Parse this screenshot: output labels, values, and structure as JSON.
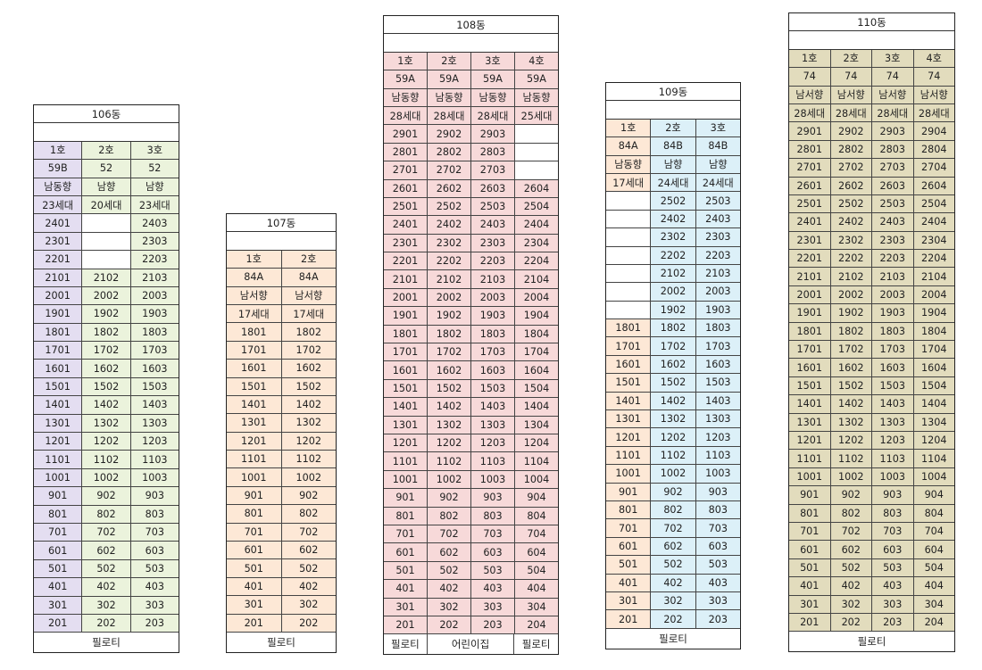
{
  "buildings": [
    {
      "name": "106동",
      "units": [
        "1호",
        "2호",
        "3호"
      ],
      "types": [
        "59B",
        "52",
        "52"
      ],
      "dirs": [
        "남동향",
        "남향",
        "남향"
      ],
      "counts": [
        "23세대",
        "20세대",
        "23세대"
      ],
      "colors": [
        "#e4def1",
        "#ebf3dc",
        "#ebf3dc"
      ],
      "floors": [
        [
          "2401",
          "",
          "2403"
        ],
        [
          "2301",
          "",
          "2303"
        ],
        [
          "2201",
          "",
          "2203"
        ],
        [
          "2101",
          "2102",
          "2103"
        ],
        [
          "2001",
          "2002",
          "2003"
        ],
        [
          "1901",
          "1902",
          "1903"
        ],
        [
          "1801",
          "1802",
          "1803"
        ],
        [
          "1701",
          "1702",
          "1703"
        ],
        [
          "1601",
          "1602",
          "1603"
        ],
        [
          "1501",
          "1502",
          "1503"
        ],
        [
          "1401",
          "1402",
          "1403"
        ],
        [
          "1301",
          "1302",
          "1303"
        ],
        [
          "1201",
          "1202",
          "1203"
        ],
        [
          "1101",
          "1102",
          "1103"
        ],
        [
          "1001",
          "1002",
          "1003"
        ],
        [
          "901",
          "902",
          "903"
        ],
        [
          "801",
          "802",
          "803"
        ],
        [
          "701",
          "702",
          "703"
        ],
        [
          "601",
          "602",
          "603"
        ],
        [
          "501",
          "502",
          "503"
        ],
        [
          "401",
          "402",
          "403"
        ],
        [
          "301",
          "302",
          "303"
        ],
        [
          "201",
          "202",
          "203"
        ]
      ],
      "footer": [
        {
          "label": "필로티",
          "span": 3
        }
      ]
    },
    {
      "name": "107동",
      "units": [
        "1호",
        "2호"
      ],
      "types": [
        "84A",
        "84A"
      ],
      "dirs": [
        "남서향",
        "남서향"
      ],
      "counts": [
        "17세대",
        "17세대"
      ],
      "colors": [
        "#fde8d6",
        "#fde8d6"
      ],
      "floors": [
        [
          "1801",
          "1802"
        ],
        [
          "1701",
          "1702"
        ],
        [
          "1601",
          "1602"
        ],
        [
          "1501",
          "1502"
        ],
        [
          "1401",
          "1402"
        ],
        [
          "1301",
          "1302"
        ],
        [
          "1201",
          "1202"
        ],
        [
          "1101",
          "1102"
        ],
        [
          "1001",
          "1002"
        ],
        [
          "901",
          "902"
        ],
        [
          "801",
          "802"
        ],
        [
          "701",
          "702"
        ],
        [
          "601",
          "602"
        ],
        [
          "501",
          "502"
        ],
        [
          "401",
          "402"
        ],
        [
          "301",
          "302"
        ],
        [
          "201",
          "202"
        ]
      ],
      "footer": [
        {
          "label": "필로티",
          "span": 2
        }
      ]
    },
    {
      "name": "108동",
      "units": [
        "1호",
        "2호",
        "3호",
        "4호"
      ],
      "types": [
        "59A",
        "59A",
        "59A",
        "59A"
      ],
      "dirs": [
        "남동향",
        "남동향",
        "남동향",
        "남동향"
      ],
      "counts": [
        "28세대",
        "28세대",
        "28세대",
        "25세대"
      ],
      "colors": [
        "#f7d9d9",
        "#f7d9d9",
        "#f7d9d9",
        "#f7d9d9"
      ],
      "floors": [
        [
          "2901",
          "2902",
          "2903",
          ""
        ],
        [
          "2801",
          "2802",
          "2803",
          ""
        ],
        [
          "2701",
          "2702",
          "2703",
          ""
        ],
        [
          "2601",
          "2602",
          "2603",
          "2604"
        ],
        [
          "2501",
          "2502",
          "2503",
          "2504"
        ],
        [
          "2401",
          "2402",
          "2403",
          "2404"
        ],
        [
          "2301",
          "2302",
          "2303",
          "2304"
        ],
        [
          "2201",
          "2202",
          "2203",
          "2204"
        ],
        [
          "2101",
          "2102",
          "2103",
          "2104"
        ],
        [
          "2001",
          "2002",
          "2003",
          "2004"
        ],
        [
          "1901",
          "1902",
          "1903",
          "1904"
        ],
        [
          "1801",
          "1802",
          "1803",
          "1804"
        ],
        [
          "1701",
          "1702",
          "1703",
          "1704"
        ],
        [
          "1601",
          "1602",
          "1603",
          "1604"
        ],
        [
          "1501",
          "1502",
          "1503",
          "1504"
        ],
        [
          "1401",
          "1402",
          "1403",
          "1404"
        ],
        [
          "1301",
          "1302",
          "1303",
          "1304"
        ],
        [
          "1201",
          "1202",
          "1203",
          "1204"
        ],
        [
          "1101",
          "1102",
          "1103",
          "1104"
        ],
        [
          "1001",
          "1002",
          "1003",
          "1004"
        ],
        [
          "901",
          "902",
          "903",
          "904"
        ],
        [
          "801",
          "802",
          "803",
          "804"
        ],
        [
          "701",
          "702",
          "703",
          "704"
        ],
        [
          "601",
          "602",
          "603",
          "604"
        ],
        [
          "501",
          "502",
          "503",
          "504"
        ],
        [
          "401",
          "402",
          "403",
          "404"
        ],
        [
          "301",
          "302",
          "303",
          "304"
        ],
        [
          "201",
          "202",
          "203",
          "204"
        ]
      ],
      "footer": [
        {
          "label": "필로티",
          "span": 1
        },
        {
          "label": "어린이집",
          "span": 2
        },
        {
          "label": "필로티",
          "span": 1
        }
      ]
    },
    {
      "name": "109동",
      "units": [
        "1호",
        "2호",
        "3호"
      ],
      "types": [
        "84A",
        "84B",
        "84B"
      ],
      "dirs": [
        "남동향",
        "남향",
        "남향"
      ],
      "counts": [
        "17세대",
        "24세대",
        "24세대"
      ],
      "colors": [
        "#fde8d6",
        "#dcf0f8",
        "#dcf0f8"
      ],
      "floors": [
        [
          "",
          "2502",
          "2503"
        ],
        [
          "",
          "2402",
          "2403"
        ],
        [
          "",
          "2302",
          "2303"
        ],
        [
          "",
          "2202",
          "2203"
        ],
        [
          "",
          "2102",
          "2103"
        ],
        [
          "",
          "2002",
          "2003"
        ],
        [
          "",
          "1902",
          "1903"
        ],
        [
          "1801",
          "1802",
          "1803"
        ],
        [
          "1701",
          "1702",
          "1703"
        ],
        [
          "1601",
          "1602",
          "1603"
        ],
        [
          "1501",
          "1502",
          "1503"
        ],
        [
          "1401",
          "1402",
          "1403"
        ],
        [
          "1301",
          "1302",
          "1303"
        ],
        [
          "1201",
          "1202",
          "1203"
        ],
        [
          "1101",
          "1102",
          "1103"
        ],
        [
          "1001",
          "1002",
          "1003"
        ],
        [
          "901",
          "902",
          "903"
        ],
        [
          "801",
          "802",
          "803"
        ],
        [
          "701",
          "702",
          "703"
        ],
        [
          "601",
          "602",
          "603"
        ],
        [
          "501",
          "502",
          "503"
        ],
        [
          "401",
          "402",
          "403"
        ],
        [
          "301",
          "302",
          "303"
        ],
        [
          "201",
          "202",
          "203"
        ]
      ],
      "footer": [
        {
          "label": "필로티",
          "span": 3
        }
      ]
    },
    {
      "name": "110동",
      "units": [
        "1호",
        "2호",
        "3호",
        "4호"
      ],
      "types": [
        "74",
        "74",
        "74",
        "74"
      ],
      "dirs": [
        "남서향",
        "남서향",
        "남서향",
        "남서향"
      ],
      "counts": [
        "28세대",
        "28세대",
        "28세대",
        "28세대"
      ],
      "colors": [
        "#e2dcbd",
        "#e2dcbd",
        "#e2dcbd",
        "#e2dcbd"
      ],
      "floors": [
        [
          "2901",
          "2902",
          "2903",
          "2904"
        ],
        [
          "2801",
          "2802",
          "2803",
          "2804"
        ],
        [
          "2701",
          "2702",
          "2703",
          "2704"
        ],
        [
          "2601",
          "2602",
          "2603",
          "2604"
        ],
        [
          "2501",
          "2502",
          "2503",
          "2504"
        ],
        [
          "2401",
          "2402",
          "2403",
          "2404"
        ],
        [
          "2301",
          "2302",
          "2303",
          "2304"
        ],
        [
          "2201",
          "2202",
          "2203",
          "2204"
        ],
        [
          "2101",
          "2102",
          "2103",
          "2104"
        ],
        [
          "2001",
          "2002",
          "2003",
          "2004"
        ],
        [
          "1901",
          "1902",
          "1903",
          "1904"
        ],
        [
          "1801",
          "1802",
          "1803",
          "1804"
        ],
        [
          "1701",
          "1702",
          "1703",
          "1704"
        ],
        [
          "1601",
          "1602",
          "1603",
          "1604"
        ],
        [
          "1501",
          "1502",
          "1503",
          "1504"
        ],
        [
          "1401",
          "1402",
          "1403",
          "1404"
        ],
        [
          "1301",
          "1302",
          "1303",
          "1304"
        ],
        [
          "1201",
          "1202",
          "1203",
          "1204"
        ],
        [
          "1101",
          "1102",
          "1103",
          "1104"
        ],
        [
          "1001",
          "1002",
          "1003",
          "1004"
        ],
        [
          "901",
          "902",
          "903",
          "904"
        ],
        [
          "801",
          "802",
          "803",
          "804"
        ],
        [
          "701",
          "702",
          "703",
          "704"
        ],
        [
          "601",
          "602",
          "603",
          "604"
        ],
        [
          "501",
          "502",
          "503",
          "504"
        ],
        [
          "401",
          "402",
          "403",
          "404"
        ],
        [
          "301",
          "302",
          "303",
          "304"
        ],
        [
          "201",
          "202",
          "203",
          "204"
        ]
      ],
      "footer": [
        {
          "label": "필로티",
          "span": 4
        }
      ]
    }
  ]
}
